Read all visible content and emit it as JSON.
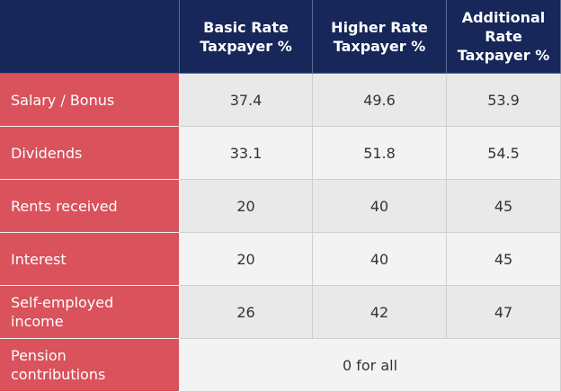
{
  "table": {
    "header": [
      "Basic Rate Taxpayer %",
      "Higher Rate Taxpayer %",
      "Additional Rate Taxpayer %"
    ],
    "rows": [
      [
        "Salary / Bonus",
        "37.4",
        "49.6",
        "53.9"
      ],
      [
        "Dividends",
        "33.1",
        "51.8",
        "54.5"
      ],
      [
        "Rents received",
        "20",
        "40",
        "45"
      ],
      [
        "Interest",
        "20",
        "40",
        "45"
      ],
      [
        "Self-employed income",
        "26",
        "42",
        "47"
      ],
      [
        "Pension contributions",
        "0 for all"
      ]
    ]
  }
}
